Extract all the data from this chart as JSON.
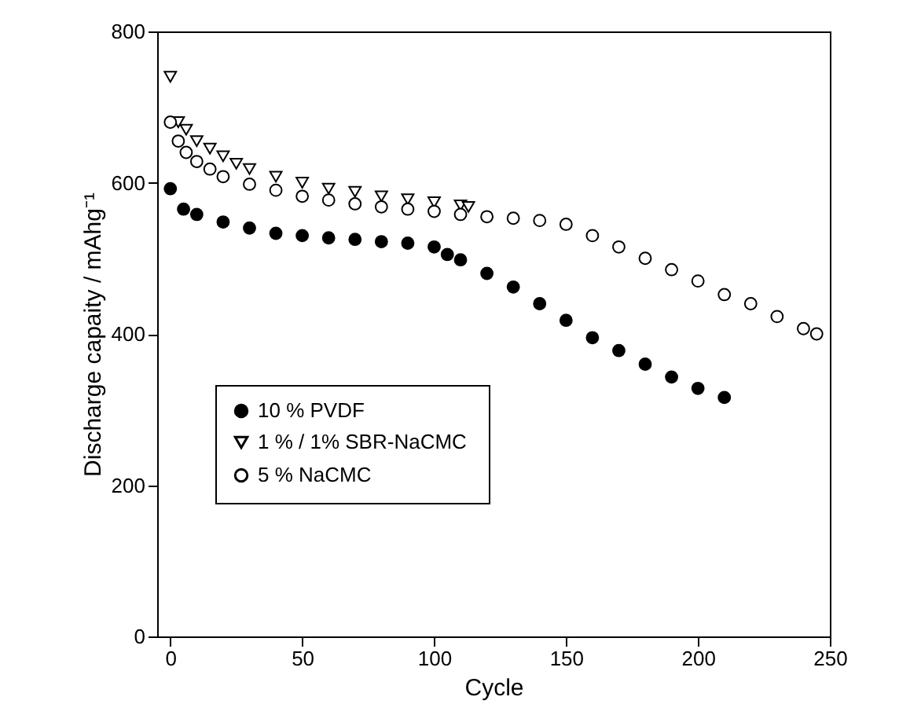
{
  "chart_data": {
    "type": "scatter",
    "xlabel": "Cycle",
    "ylabel": "Discharge capaity / mAhg⁻¹",
    "xlim": [
      -5,
      250
    ],
    "ylim": [
      0,
      800
    ],
    "xticks": [
      0,
      50,
      100,
      150,
      200,
      250
    ],
    "yticks": [
      0,
      200,
      400,
      600,
      800
    ],
    "grid": false,
    "legend": "bottom left",
    "series": [
      {
        "name": "10 % PVDF",
        "color": "#000000",
        "marker": "circle",
        "x": [
          0,
          5,
          10,
          20,
          30,
          40,
          50,
          60,
          70,
          80,
          90,
          100,
          105,
          110,
          120,
          130,
          140,
          150,
          160,
          170,
          180,
          190,
          200,
          210
        ],
        "values": [
          592,
          565,
          558,
          548,
          540,
          533,
          530,
          527,
          525,
          522,
          520,
          515,
          505,
          498,
          480,
          462,
          440,
          418,
          395,
          378,
          360,
          343,
          328,
          316
        ]
      },
      {
        "name": "1 %  / 1% SBR-NaCMC",
        "color": "#ffffff",
        "marker": "triangle",
        "x": [
          0,
          3,
          6,
          10,
          15,
          20,
          25,
          30,
          40,
          50,
          60,
          70,
          80,
          90,
          100,
          110,
          113
        ],
        "values": [
          740,
          680,
          670,
          655,
          645,
          635,
          625,
          618,
          608,
          600,
          592,
          588,
          582,
          578,
          574,
          570,
          568
        ]
      },
      {
        "name": "5 % NaCMC",
        "color": "#ffffff",
        "marker": "circle",
        "x": [
          0,
          3,
          6,
          10,
          15,
          20,
          30,
          40,
          50,
          60,
          70,
          80,
          90,
          100,
          110,
          120,
          130,
          140,
          150,
          160,
          170,
          180,
          190,
          200,
          210,
          220,
          230,
          240,
          245
        ],
        "values": [
          680,
          655,
          640,
          628,
          618,
          608,
          598,
          590,
          582,
          577,
          572,
          568,
          565,
          562,
          558,
          555,
          553,
          550,
          545,
          530,
          515,
          500,
          485,
          470,
          452,
          440,
          423,
          407,
          400
        ]
      }
    ]
  }
}
